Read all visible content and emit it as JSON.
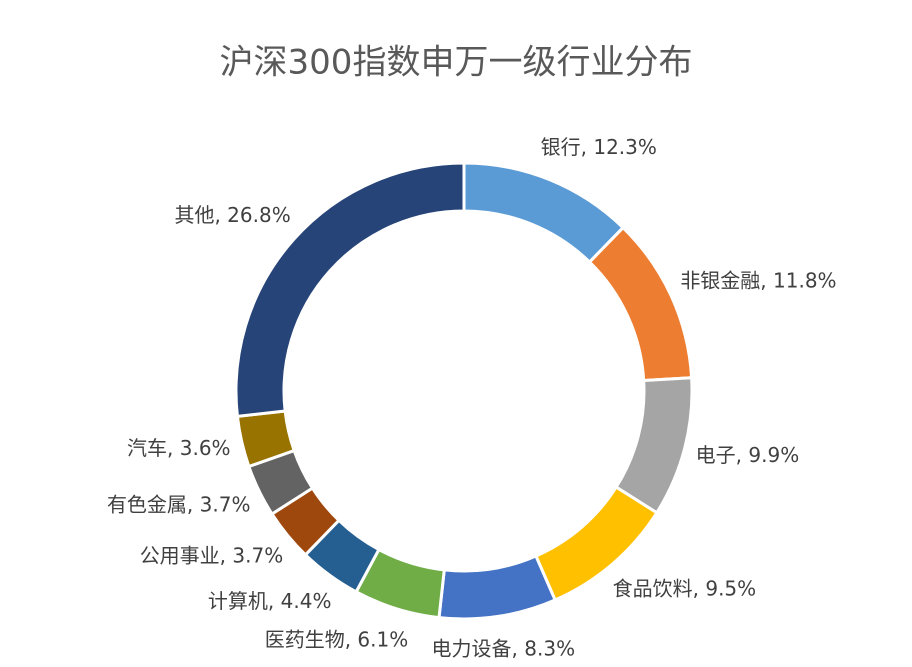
{
  "chart_data": {
    "type": "donut",
    "title": "沪深300指数申万一级行业分布",
    "values": [
      12.3,
      11.8,
      9.9,
      9.5,
      8.3,
      6.1,
      4.4,
      3.7,
      3.7,
      3.6,
      26.8
    ],
    "value_labels": [
      "银行, 12.3%",
      "非银金融, 11.8%",
      "电子, 9.9%",
      "食品饮料, 9.5%",
      "电力设备, 8.3%",
      "医药生物, 6.1%",
      "计算机, 4.4%",
      "公用事业, 3.7%",
      "有色金属, 3.7%",
      "汽车, 3.6%",
      "其他, 26.8%"
    ],
    "colors": [
      "#5b9bd5",
      "#ed7d31",
      "#a5a5a5",
      "#ffc000",
      "#4472c4",
      "#70ad47",
      "#255e91",
      "#9e480e",
      "#636363",
      "#997300",
      "#264478"
    ]
  }
}
